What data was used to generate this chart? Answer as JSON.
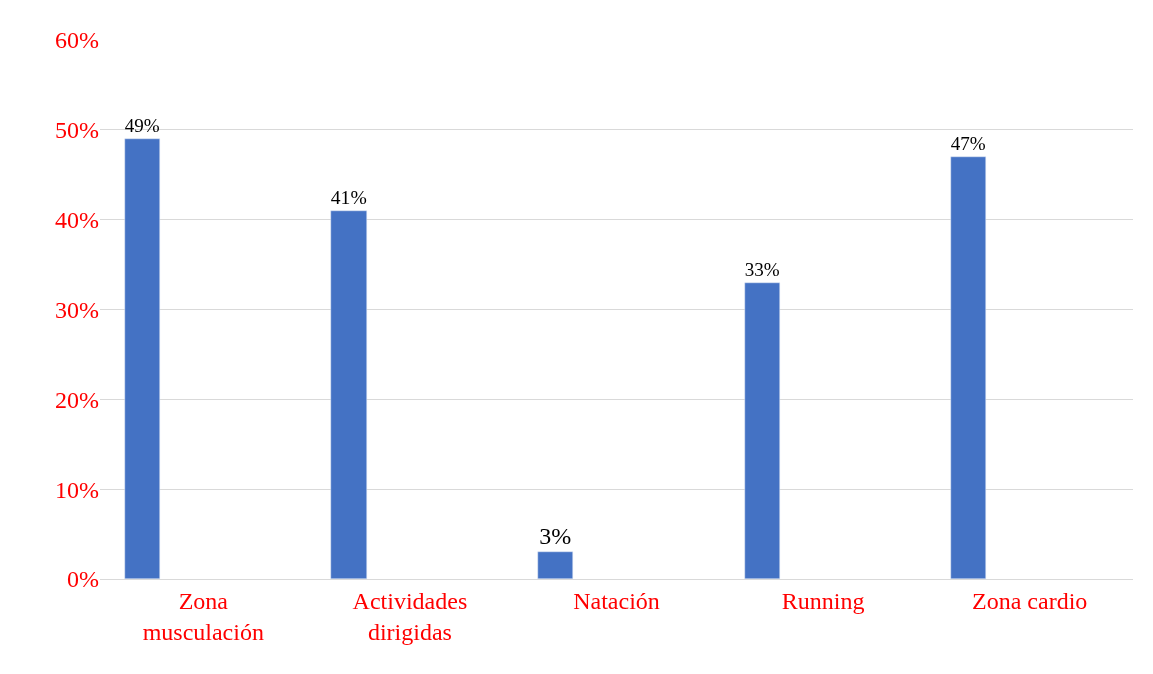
{
  "chart_data": {
    "type": "bar",
    "categories": [
      "Zona musculación",
      "Actividades dirigidas",
      "Natación",
      "Running",
      "Zona cardio"
    ],
    "values": [
      49,
      41,
      3,
      33,
      47
    ],
    "value_labels": [
      "49%",
      "41%",
      "3%",
      "33%",
      "47%"
    ],
    "color": "#4472c4",
    "ylim": [
      0,
      60
    ],
    "yticks": [
      {
        "value": 0,
        "label": "0%"
      },
      {
        "value": 10,
        "label": "10%"
      },
      {
        "value": 20,
        "label": "20%"
      },
      {
        "value": 30,
        "label": "30%"
      },
      {
        "value": 40,
        "label": "40%"
      },
      {
        "value": 50,
        "label": "50%"
      },
      {
        "value": 60,
        "label": "60%"
      }
    ],
    "grid": "y",
    "legend": false
  }
}
